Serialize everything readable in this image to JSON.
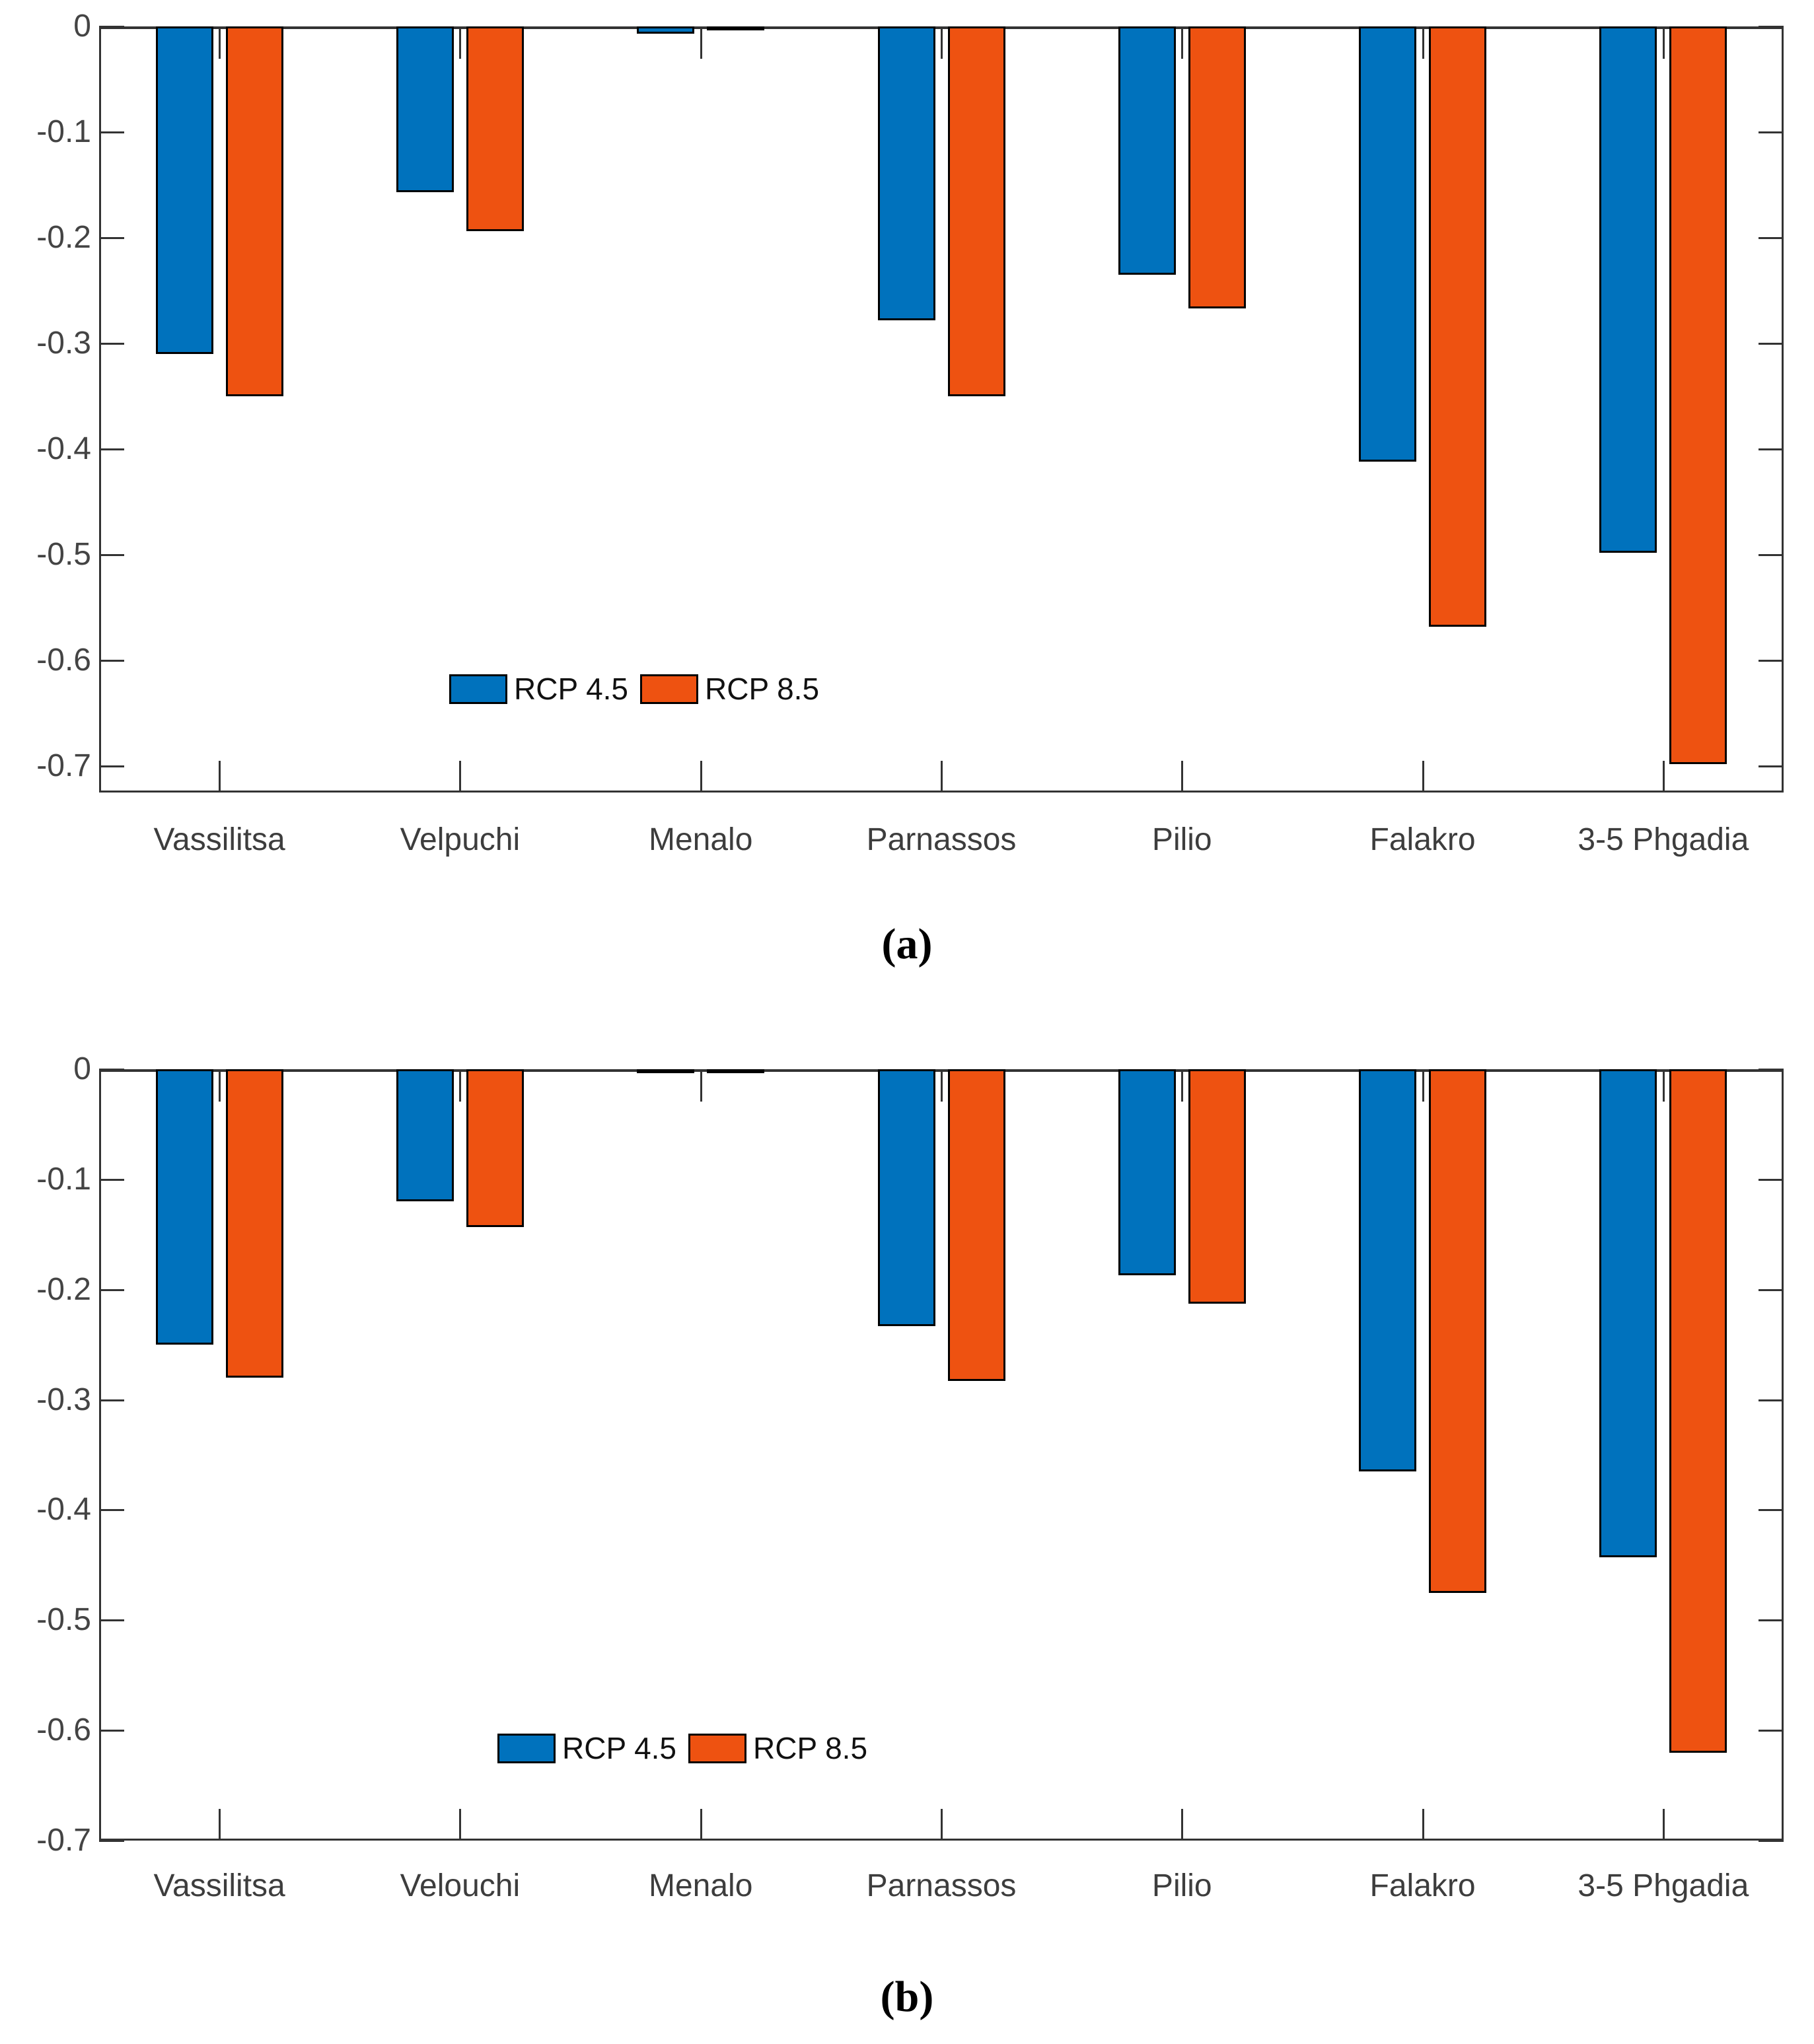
{
  "page": {
    "background": "#ffffff"
  },
  "captions": {
    "a": "(a)",
    "b": "(b)"
  },
  "colors": {
    "rcp45": "#0072BD",
    "rcp85": "#EE5211",
    "axis": "#333333",
    "tick_label": "#444444",
    "bar_outline": "#000000"
  },
  "legend": {
    "items": [
      {
        "label": "RCP 4.5",
        "color": "#0072BD"
      },
      {
        "label": "RCP 8.5",
        "color": "#EE5211"
      }
    ]
  },
  "chart_data": [
    {
      "id": "a",
      "type": "bar",
      "title": "",
      "xlabel": "",
      "ylabel": "",
      "caption": "(a)",
      "categories": [
        "Vassilitsa",
        "Velpuchi",
        "Menalo",
        "Parnassos",
        "Pilio",
        "Falakro",
        "3-5 Phgadia"
      ],
      "series": [
        {
          "name": "RCP 4.5",
          "color": "#0072BD",
          "values": [
            -0.31,
            -0.157,
            -0.007,
            -0.278,
            -0.235,
            -0.412,
            -0.498
          ]
        },
        {
          "name": "RCP 8.5",
          "color": "#EE5211",
          "values": [
            -0.35,
            -0.194,
            -0.003,
            -0.35,
            -0.267,
            -0.568,
            -0.698
          ]
        }
      ],
      "ylim": [
        -0.725,
        0
      ],
      "yticks": [
        0,
        -0.1,
        -0.2,
        -0.3,
        -0.4,
        -0.5,
        -0.6,
        -0.7
      ],
      "grid": false,
      "legend_position": "inside-bottom-left"
    },
    {
      "id": "b",
      "type": "bar",
      "title": "",
      "xlabel": "",
      "ylabel": "",
      "caption": "(b)",
      "categories": [
        "Vassilitsa",
        "Velouchi",
        "Menalo",
        "Parnassos",
        "Pilio",
        "Falakro",
        "3-5 Phgadia"
      ],
      "series": [
        {
          "name": "RCP 4.5",
          "color": "#0072BD",
          "values": [
            -0.25,
            -0.12,
            -0.002,
            -0.233,
            -0.187,
            -0.365,
            -0.443
          ]
        },
        {
          "name": "RCP 8.5",
          "color": "#EE5211",
          "values": [
            -0.28,
            -0.143,
            -0.001,
            -0.283,
            -0.213,
            -0.475,
            -0.62
          ]
        }
      ],
      "ylim": [
        -0.7,
        0
      ],
      "yticks": [
        0,
        -0.1,
        -0.2,
        -0.3,
        -0.4,
        -0.5,
        -0.6,
        -0.7
      ],
      "grid": false,
      "legend_position": "inside-bottom-left"
    }
  ]
}
